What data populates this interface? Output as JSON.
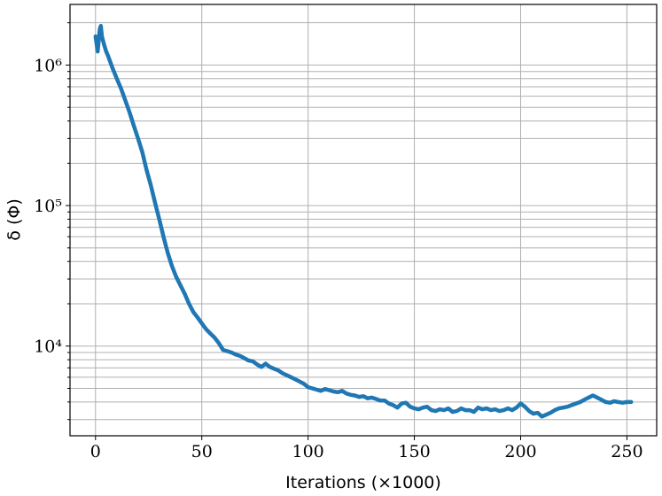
{
  "chart_data": {
    "type": "line",
    "title": "",
    "xlabel": "Iterations (×1000)",
    "ylabel": "δ (Φ)",
    "xlim": [
      -12,
      264
    ],
    "ylim": [
      2300,
      2700000
    ],
    "yscale": "log",
    "grid": true,
    "legend": "none",
    "x_ticks": [
      0,
      50,
      100,
      150,
      200,
      250
    ],
    "x_tick_labels": [
      "0",
      "50",
      "100",
      "150",
      "200",
      "250"
    ],
    "y_ticks": [
      10000,
      100000,
      1000000
    ],
    "y_tick_labels": [
      "10⁴",
      "10⁵",
      "10⁶"
    ],
    "series": [
      {
        "color": "#1f77b4",
        "x": [
          0,
          1,
          2,
          2.5,
          3,
          4,
          5,
          6,
          8,
          10,
          12,
          14,
          16,
          18,
          20,
          22,
          24,
          26,
          28,
          30,
          32,
          34,
          36,
          38,
          40,
          42,
          44,
          46,
          48,
          50,
          52,
          54,
          56,
          58,
          60,
          62,
          64,
          66,
          68,
          70,
          72,
          74,
          76,
          78,
          80,
          82,
          84,
          86,
          88,
          90,
          92,
          94,
          96,
          98,
          100,
          102,
          104,
          106,
          108,
          110,
          112,
          114,
          116,
          118,
          120,
          122,
          124,
          126,
          128,
          130,
          132,
          134,
          136,
          138,
          140,
          142,
          144,
          146,
          148,
          150,
          152,
          154,
          156,
          158,
          160,
          162,
          164,
          166,
          168,
          170,
          172,
          174,
          176,
          178,
          180,
          182,
          184,
          186,
          188,
          190,
          192,
          194,
          196,
          198,
          200,
          202,
          204,
          206,
          208,
          210,
          212,
          214,
          216,
          218,
          220,
          222,
          224,
          226,
          228,
          230,
          232,
          234,
          236,
          238,
          240,
          242,
          244,
          246,
          248,
          250,
          252
        ],
        "y": [
          1600000,
          1250000,
          1800000,
          1900000,
          1600000,
          1400000,
          1250000,
          1150000,
          950000,
          800000,
          680000,
          560000,
          460000,
          370000,
          300000,
          240000,
          180000,
          140000,
          105000,
          80000,
          60000,
          46000,
          37000,
          31000,
          27000,
          23500,
          20000,
          17500,
          16000,
          14500,
          13200,
          12300,
          11500,
          10500,
          9400,
          9200,
          9000,
          8700,
          8500,
          8200,
          7900,
          7800,
          7400,
          7100,
          7500,
          7100,
          6900,
          6700,
          6400,
          6200,
          6000,
          5800,
          5600,
          5400,
          5100,
          5000,
          4900,
          4800,
          4950,
          4850,
          4750,
          4700,
          4800,
          4600,
          4500,
          4450,
          4350,
          4400,
          4250,
          4300,
          4200,
          4100,
          4100,
          3900,
          3800,
          3650,
          3900,
          3950,
          3700,
          3600,
          3550,
          3650,
          3700,
          3500,
          3450,
          3550,
          3500,
          3600,
          3400,
          3450,
          3600,
          3500,
          3500,
          3400,
          3650,
          3550,
          3600,
          3500,
          3550,
          3450,
          3500,
          3600,
          3500,
          3650,
          3900,
          3700,
          3450,
          3300,
          3350,
          3150,
          3250,
          3350,
          3500,
          3600,
          3650,
          3700,
          3800,
          3900,
          4000,
          4150,
          4300,
          4450,
          4300,
          4150,
          4000,
          3950,
          4050,
          4000,
          3950,
          4000,
          4000
        ]
      }
    ]
  }
}
